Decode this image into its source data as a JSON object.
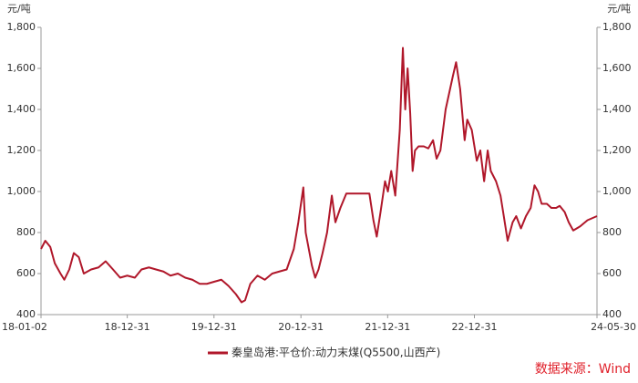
{
  "chart_data": {
    "type": "line",
    "y_unit": "元/吨",
    "y2_unit": "元/吨",
    "source": "数据来源：Wind",
    "xlim": [
      "18-01-02",
      "24-05-30"
    ],
    "xticks": [
      "18-01-02",
      "18-12-31",
      "19-12-31",
      "20-12-31",
      "21-12-31",
      "22-12-31",
      "24-05-30"
    ],
    "ylim": [
      400,
      1800
    ],
    "yticks": [
      {
        "value": 400,
        "label": "400"
      },
      {
        "value": 600,
        "label": "600"
      },
      {
        "value": 800,
        "label": "800"
      },
      {
        "value": 1000,
        "label": "1,000"
      },
      {
        "value": 1200,
        "label": "1,200"
      },
      {
        "value": 1400,
        "label": "1,400"
      },
      {
        "value": 1600,
        "label": "1,600"
      },
      {
        "value": 1800,
        "label": "1,800"
      }
    ],
    "y2lim": [
      400,
      1800
    ],
    "y2ticks": [
      {
        "value": 400,
        "label": "400"
      },
      {
        "value": 600,
        "label": "600"
      },
      {
        "value": 800,
        "label": "800"
      },
      {
        "value": 1000,
        "label": "1,000"
      },
      {
        "value": 1200,
        "label": "1,200"
      },
      {
        "value": 1400,
        "label": "1,400"
      },
      {
        "value": 1600,
        "label": "1,600"
      },
      {
        "value": 1800,
        "label": "1,800"
      }
    ],
    "x": [
      "18-01-02",
      "18-01-20",
      "18-02-10",
      "18-03-01",
      "18-03-25",
      "18-04-10",
      "18-05-01",
      "18-05-20",
      "18-06-10",
      "18-07-01",
      "18-08-01",
      "18-09-01",
      "18-10-01",
      "18-11-01",
      "18-12-01",
      "18-12-31",
      "19-02-01",
      "19-03-01",
      "19-04-01",
      "19-05-01",
      "19-06-01",
      "19-07-01",
      "19-08-01",
      "19-09-01",
      "19-10-01",
      "19-11-01",
      "19-12-01",
      "19-12-31",
      "20-01-31",
      "20-03-01",
      "20-04-01",
      "20-04-25",
      "20-05-10",
      "20-06-01",
      "20-07-01",
      "20-08-01",
      "20-09-01",
      "20-10-01",
      "20-11-01",
      "20-12-01",
      "20-12-20",
      "21-01-10",
      "21-01-20",
      "21-02-15",
      "21-03-01",
      "21-03-15",
      "21-04-01",
      "21-04-20",
      "21-05-10",
      "21-05-25",
      "21-06-15",
      "21-07-10",
      "21-08-01",
      "21-09-01",
      "21-10-01",
      "21-10-15",
      "21-11-01",
      "21-11-15",
      "21-12-01",
      "21-12-20",
      "22-01-01",
      "22-01-15",
      "22-02-01",
      "22-02-20",
      "22-03-05",
      "22-03-15",
      "22-03-25",
      "22-04-05",
      "22-04-15",
      "22-04-25",
      "22-05-10",
      "22-06-01",
      "22-06-20",
      "22-07-10",
      "22-07-25",
      "22-08-10",
      "22-09-01",
      "22-10-01",
      "22-10-15",
      "22-11-01",
      "22-11-20",
      "22-12-01",
      "22-12-20",
      "23-01-10",
      "23-01-25",
      "23-02-10",
      "23-02-25",
      "23-03-10",
      "23-04-01",
      "23-04-20",
      "23-05-01",
      "23-05-20",
      "23-06-10",
      "23-06-25",
      "23-07-15",
      "23-08-05",
      "23-08-25",
      "23-09-10",
      "23-09-25",
      "23-10-10",
      "23-11-01",
      "23-11-20",
      "23-12-10",
      "23-12-25",
      "24-01-15",
      "24-02-01",
      "24-02-20",
      "24-03-20",
      "24-04-20",
      "24-05-30"
    ],
    "series": [
      {
        "name": "秦皇岛港:平仓价:动力末煤(Q5500,山西产)",
        "color": "#b0172a",
        "values": [
          720,
          760,
          730,
          650,
          600,
          570,
          620,
          700,
          680,
          600,
          620,
          630,
          660,
          620,
          580,
          590,
          580,
          620,
          630,
          620,
          610,
          590,
          600,
          580,
          570,
          550,
          550,
          560,
          570,
          540,
          500,
          460,
          470,
          550,
          590,
          570,
          600,
          610,
          620,
          720,
          850,
          1020,
          800,
          640,
          580,
          620,
          700,
          800,
          980,
          850,
          920,
          990,
          990,
          990,
          990,
          990,
          860,
          780,
          900,
          1050,
          1000,
          1100,
          980,
          1300,
          1700,
          1400,
          1600,
          1380,
          1100,
          1200,
          1220,
          1220,
          1210,
          1250,
          1160,
          1200,
          1400,
          1560,
          1630,
          1500,
          1250,
          1350,
          1300,
          1150,
          1200,
          1050,
          1200,
          1100,
          1050,
          980,
          900,
          760,
          850,
          880,
          820,
          880,
          920,
          1030,
          1000,
          940,
          940,
          920,
          920,
          930,
          900,
          850,
          810,
          830,
          860,
          880
        ]
      }
    ]
  }
}
